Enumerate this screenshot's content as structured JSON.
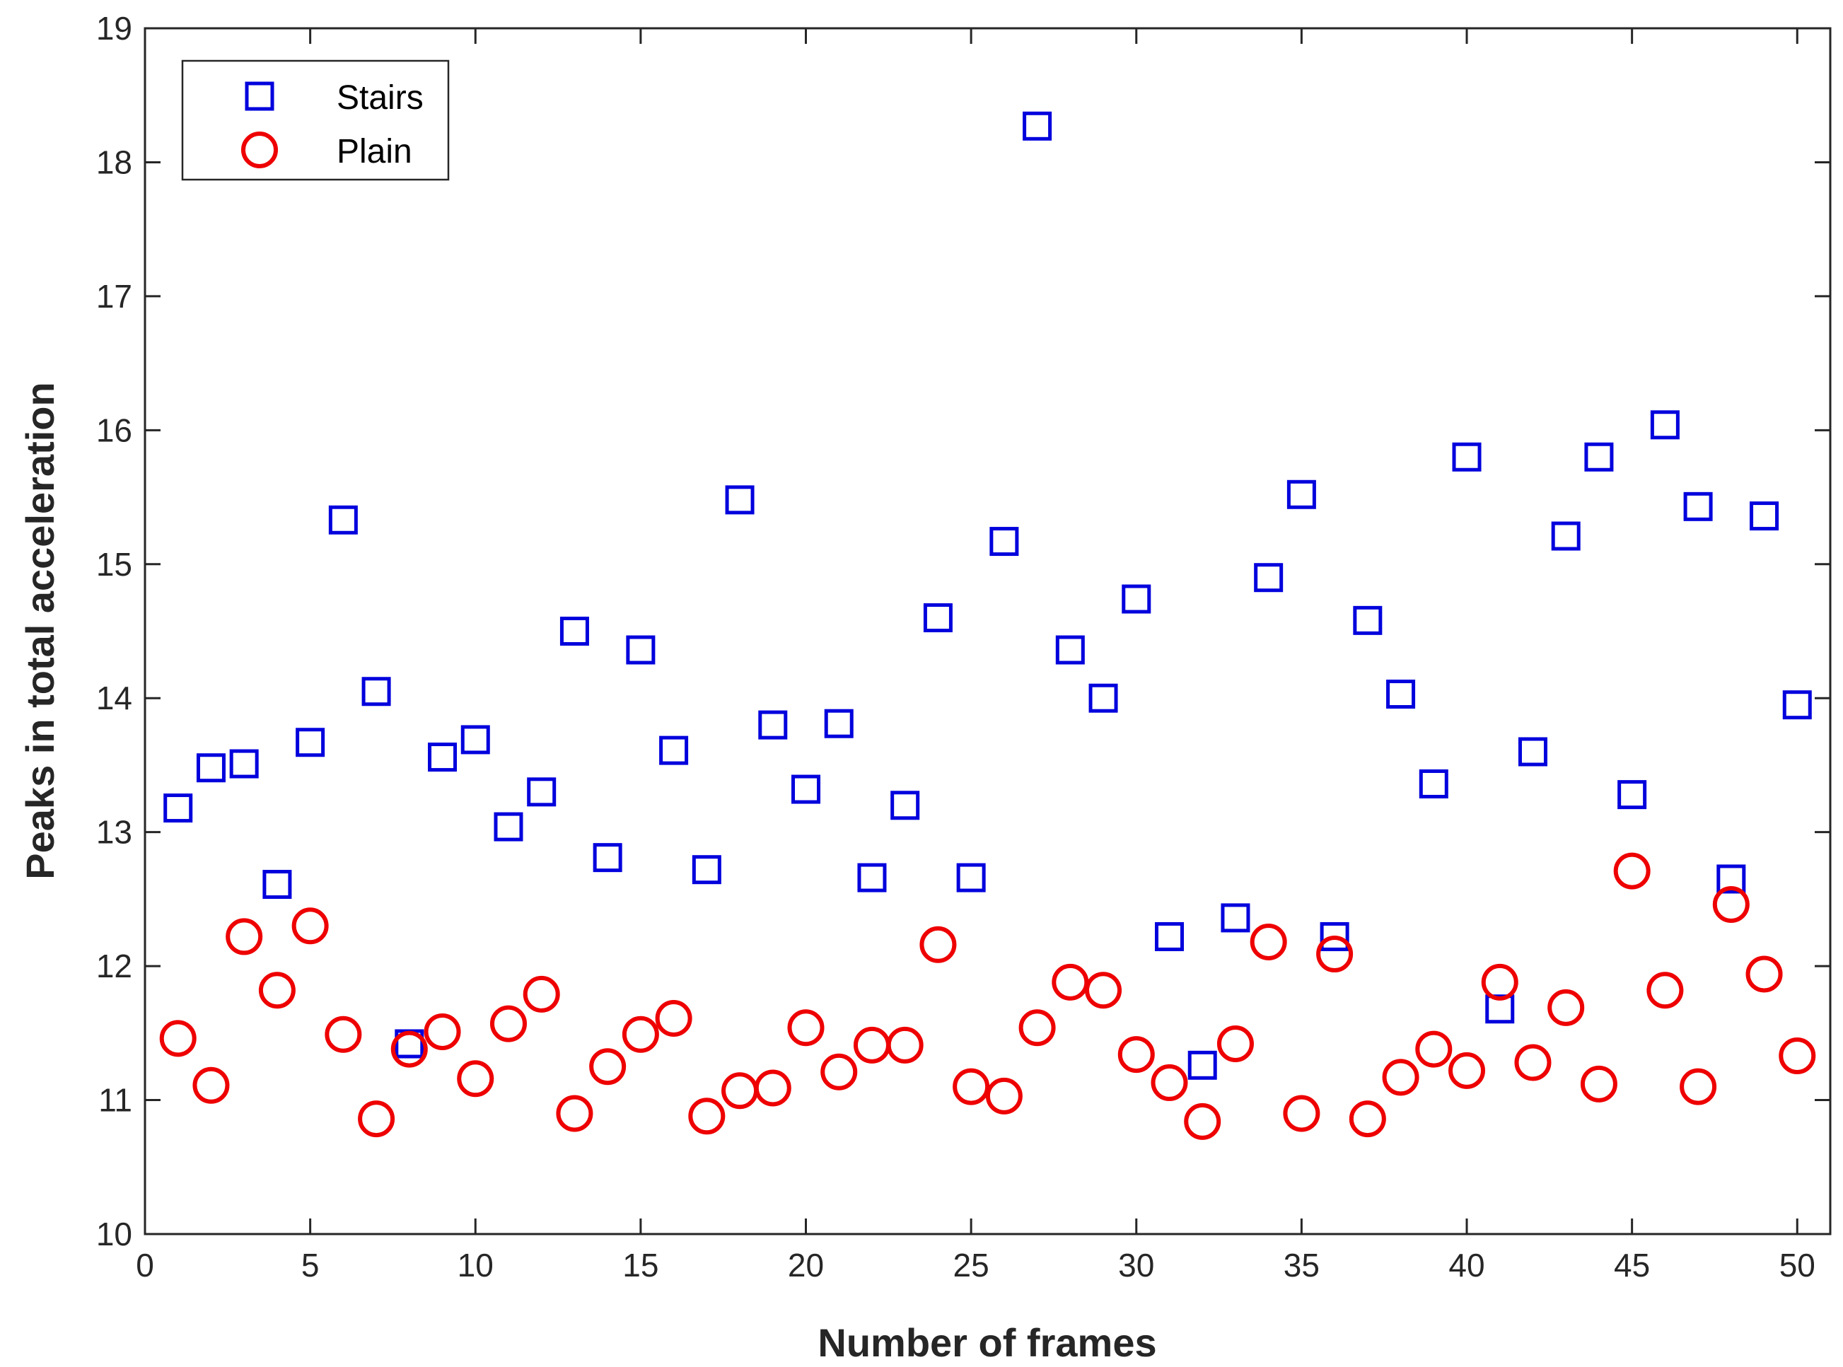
{
  "chart_data": {
    "type": "scatter",
    "title": "",
    "xlabel": "Number of frames",
    "ylabel": "Peaks in total acceleration",
    "xlim": [
      0,
      51
    ],
    "ylim": [
      10,
      19
    ],
    "xticks": [
      0,
      5,
      10,
      15,
      20,
      25,
      30,
      35,
      40,
      45,
      50
    ],
    "yticks": [
      10,
      11,
      12,
      13,
      14,
      15,
      16,
      17,
      18,
      19
    ],
    "grid": false,
    "legend_position": "top-left",
    "series": [
      {
        "name": "Stairs",
        "marker": "square",
        "color": "#0000dd",
        "x": [
          1,
          2,
          3,
          4,
          5,
          6,
          7,
          8,
          9,
          10,
          11,
          12,
          13,
          14,
          15,
          16,
          17,
          18,
          19,
          20,
          21,
          22,
          23,
          24,
          25,
          26,
          27,
          28,
          29,
          30,
          31,
          32,
          33,
          34,
          35,
          36,
          37,
          38,
          39,
          40,
          41,
          42,
          43,
          44,
          45,
          46,
          47,
          48,
          49,
          50
        ],
        "y": [
          13.18,
          13.48,
          13.51,
          12.61,
          13.67,
          15.33,
          14.05,
          11.42,
          13.56,
          13.69,
          13.04,
          13.3,
          14.5,
          12.81,
          14.36,
          13.61,
          12.72,
          15.48,
          13.8,
          13.32,
          13.81,
          12.66,
          13.2,
          14.6,
          12.66,
          15.17,
          18.27,
          14.36,
          14.0,
          14.74,
          12.22,
          11.26,
          12.36,
          14.9,
          15.52,
          12.22,
          14.58,
          14.03,
          13.36,
          15.8,
          11.68,
          13.6,
          15.21,
          15.8,
          13.28,
          16.04,
          15.43,
          12.65,
          15.36,
          13.95
        ]
      },
      {
        "name": "Plain",
        "marker": "circle",
        "color": "#ee0000",
        "x": [
          1,
          2,
          3,
          4,
          5,
          6,
          7,
          8,
          9,
          10,
          11,
          12,
          13,
          14,
          15,
          16,
          17,
          18,
          19,
          20,
          21,
          22,
          23,
          24,
          25,
          26,
          27,
          28,
          29,
          30,
          31,
          32,
          33,
          34,
          35,
          36,
          37,
          38,
          39,
          40,
          41,
          42,
          43,
          44,
          45,
          46,
          47,
          48,
          49,
          50
        ],
        "y": [
          11.46,
          11.11,
          12.22,
          11.82,
          12.3,
          11.49,
          10.86,
          11.38,
          11.51,
          11.16,
          11.57,
          11.79,
          10.9,
          11.25,
          11.49,
          11.61,
          10.88,
          11.07,
          11.09,
          11.54,
          11.21,
          11.41,
          11.41,
          12.16,
          11.1,
          11.03,
          11.54,
          11.88,
          11.82,
          11.34,
          11.13,
          10.84,
          11.42,
          12.18,
          10.9,
          12.09,
          10.86,
          11.17,
          11.38,
          11.22,
          11.88,
          11.28,
          11.69,
          11.12,
          12.71,
          11.82,
          11.1,
          12.46,
          11.94,
          11.33
        ]
      }
    ]
  }
}
